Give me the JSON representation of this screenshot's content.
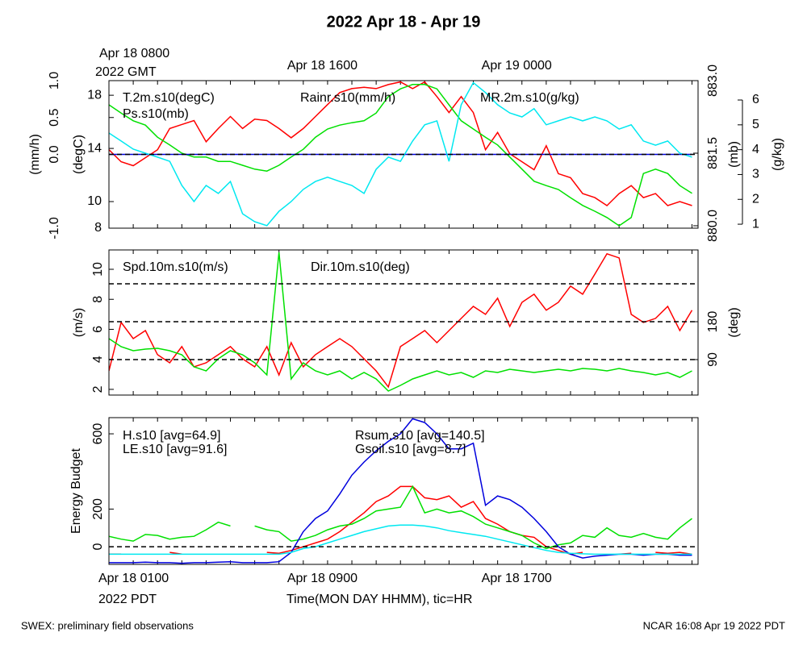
{
  "footer": {
    "left": "SWEX: preliminary field observations",
    "right": "NCAR 16:08 Apr 19 2022 PDT"
  },
  "chart_data": [
    {
      "type": "line",
      "title": "2022 Apr 18 - Apr 19",
      "top_note": "2022 GMT",
      "x": [
        0,
        0.5,
        1,
        1.5,
        2,
        2.5,
        3,
        3.5,
        4,
        4.5,
        5,
        5.5,
        6,
        6.5,
        7,
        7.5,
        8,
        8.5,
        9,
        9.5,
        10,
        10.5,
        11,
        11.5,
        12,
        12.5,
        13,
        13.5,
        14,
        14.5,
        15,
        15.5,
        16,
        16.5,
        17,
        17.5,
        18,
        18.5,
        19,
        19.5,
        20,
        20.5,
        21,
        21.5,
        22,
        22.5,
        23,
        23.5,
        24
      ],
      "xlim": [
        0,
        24.25
      ],
      "xticks": [
        0,
        1,
        2,
        3,
        4,
        5,
        6,
        7,
        8,
        9,
        10,
        11,
        12,
        13,
        14,
        15,
        16,
        17,
        18,
        19,
        20,
        21,
        22,
        23,
        24
      ],
      "xtick_labels_top": [
        {
          "value": 0,
          "label": "Apr 18 0800"
        },
        {
          "value": 8,
          "label": "Apr 18 1600"
        },
        {
          "value": 16,
          "label": "Apr 19 0000"
        }
      ],
      "axes": [
        {
          "label": "(mm/h)",
          "lim": [
            -1,
            1
          ],
          "ticks": [
            {
              "value": -1,
              "label": "-1.0"
            },
            {
              "value": 0,
              "label": "0.0"
            },
            {
              "value": 0.5,
              "label": "0.5"
            },
            {
              "value": 1,
              "label": "1.0"
            }
          ]
        },
        {
          "label": "(degC)",
          "lim": [
            8,
            19.1
          ],
          "ticks": [
            8,
            10,
            14,
            18
          ]
        },
        {
          "label": "(mb)",
          "lim": [
            879.95,
            883.0
          ],
          "ticks": [
            {
              "value": 880,
              "label": "880.0"
            },
            {
              "value": 881.5,
              "label": "881.5"
            },
            {
              "value": 883,
              "label": "883.0"
            }
          ]
        },
        {
          "label": "(g/kg)",
          "lim": [
            0.84,
            6.78
          ],
          "ticks": [
            1,
            2,
            3,
            4,
            5,
            6
          ]
        }
      ],
      "hlines": {
        "axis": 0,
        "values": [
          0
        ]
      },
      "series": [
        {
          "name": "T.2m.s10(degC)",
          "color": "#ff0000",
          "axis": 1,
          "values": [
            13.9,
            13.0,
            12.7,
            13.3,
            13.9,
            15.5,
            15.8,
            16.1,
            14.5,
            15.5,
            16.4,
            15.5,
            16.2,
            16.1,
            15.5,
            14.8,
            15.5,
            16.4,
            17.3,
            18.2,
            18.5,
            18.6,
            18.5,
            18.8,
            19.0,
            18.5,
            19.0,
            17.9,
            16.7,
            17.9,
            16.7,
            13.9,
            15.2,
            13.6,
            13.0,
            12.4,
            14.2,
            12.1,
            11.8,
            10.6,
            10.3,
            9.7,
            10.6,
            11.2,
            10.3,
            10.6,
            9.7,
            10.0,
            9.7
          ]
        },
        {
          "name": "Ps.s10(mb)",
          "color": "#00e000",
          "axis": 2,
          "values": [
            882.5,
            882.33,
            882.17,
            882.08,
            881.83,
            881.67,
            881.5,
            881.42,
            881.42,
            881.33,
            881.33,
            881.25,
            881.17,
            881.13,
            881.25,
            881.42,
            881.58,
            881.83,
            882.0,
            882.08,
            882.13,
            882.17,
            882.33,
            882.67,
            882.83,
            882.92,
            882.92,
            882.83,
            882.5,
            882.17,
            882.0,
            881.83,
            881.67,
            881.42,
            881.17,
            880.92,
            880.83,
            880.75,
            880.58,
            880.42,
            880.3,
            880.17,
            880.0,
            880.17,
            881.08,
            881.17,
            881.08,
            880.83,
            880.67
          ]
        },
        {
          "name": "Rainr.s10(mm/h)",
          "color": "#0000dd",
          "axis": 0,
          "values": [
            0,
            0,
            0,
            0,
            0,
            0,
            0,
            0,
            0,
            0,
            0,
            0,
            0,
            0,
            0,
            0,
            0,
            0,
            0,
            0,
            0,
            0,
            0,
            0,
            0,
            0,
            0,
            0,
            0,
            0,
            0,
            0,
            0,
            0,
            0,
            0,
            0,
            0,
            0,
            0,
            0,
            0,
            0,
            0,
            0,
            0,
            0,
            0,
            0
          ]
        },
        {
          "name": "MR.2m.s10(g/kg)",
          "color": "#00e8f0",
          "axis": 3,
          "values": [
            4.67,
            4.35,
            4.02,
            3.86,
            3.7,
            3.53,
            2.56,
            1.91,
            2.56,
            2.24,
            2.72,
            1.42,
            1.1,
            0.94,
            1.52,
            1.91,
            2.4,
            2.72,
            2.89,
            2.72,
            2.56,
            2.24,
            3.21,
            3.7,
            3.53,
            4.35,
            5.0,
            5.16,
            3.53,
            5.81,
            6.7,
            6.3,
            5.81,
            5.48,
            5.32,
            5.65,
            5.0,
            5.16,
            5.32,
            5.16,
            5.32,
            5.16,
            4.83,
            5.0,
            4.35,
            4.18,
            4.35,
            3.86,
            3.7
          ]
        }
      ]
    },
    {
      "type": "line",
      "x": [
        0,
        0.5,
        1,
        1.5,
        2,
        2.5,
        3,
        3.5,
        4,
        4.5,
        5,
        5.5,
        6,
        6.5,
        7,
        7.5,
        8,
        8.5,
        9,
        9.5,
        10,
        10.5,
        11,
        11.5,
        12,
        12.5,
        13,
        13.5,
        14,
        14.5,
        15,
        15.5,
        16,
        16.5,
        17,
        17.5,
        18,
        18.5,
        19,
        19.5,
        20,
        20.5,
        21,
        21.5,
        22,
        22.5,
        23,
        23.5,
        24
      ],
      "xlim": [
        0,
        24.25
      ],
      "xticks": [
        0,
        1,
        2,
        3,
        4,
        5,
        6,
        7,
        8,
        9,
        10,
        11,
        12,
        13,
        14,
        15,
        16,
        17,
        18,
        19,
        20,
        21,
        22,
        23,
        24
      ],
      "axes": [
        {
          "label": "(m/s)",
          "lim": [
            1.62,
            11.29
          ],
          "ticks": [
            2,
            4,
            6,
            8,
            10
          ]
        },
        {
          "label": "(deg)",
          "lim": [
            5.7,
            350.5
          ],
          "ticks": [
            90,
            180
          ]
        }
      ],
      "hlines": {
        "axis": 1,
        "values": [
          90,
          180,
          270
        ]
      },
      "series": [
        {
          "name": "Spd.10m.s10(m/s)",
          "color": "#ff0000",
          "axis": 0,
          "values": [
            3.23,
            6.46,
            5.38,
            5.92,
            4.31,
            3.77,
            4.85,
            3.5,
            3.77,
            4.31,
            4.85,
            4.04,
            3.5,
            4.85,
            2.96,
            5.11,
            3.5,
            4.31,
            4.85,
            5.38,
            4.85,
            4.04,
            3.23,
            2.16,
            4.85,
            5.38,
            5.92,
            5.11,
            5.92,
            6.73,
            7.53,
            7.0,
            8.07,
            6.19,
            7.8,
            8.34,
            7.27,
            7.8,
            8.88,
            8.34,
            9.68,
            11.03,
            10.76,
            7.0,
            6.46,
            6.73,
            7.53,
            5.92,
            7.27
          ]
        },
        {
          "name": "Dir.10m.s10(deg)",
          "color": "#00e000",
          "axis": 1,
          "values": [
            139.8,
            120.6,
            111.1,
            114.9,
            116.8,
            111.1,
            101.5,
            72.8,
            63.2,
            91.9,
            111.1,
            101.5,
            82.3,
            53.6,
            345,
            44.0,
            82.3,
            63.2,
            53.6,
            63.2,
            44.0,
            59.3,
            44.0,
            15.3,
            28.7,
            44.0,
            53.6,
            63.2,
            53.6,
            59.3,
            47.8,
            63.2,
            59.3,
            67.0,
            63.2,
            59.3,
            63.2,
            67.0,
            63.2,
            68.9,
            67.0,
            63.2,
            68.9,
            63.2,
            59.3,
            53.6,
            59.3,
            47.8,
            63.2
          ]
        }
      ]
    },
    {
      "type": "line",
      "xlabel": "Time(MON DAY HHMM), tic=HR",
      "bottom_note": "2022 PDT",
      "x": [
        0,
        0.5,
        1,
        1.5,
        2,
        2.5,
        3,
        3.5,
        4,
        4.5,
        5,
        5.5,
        6,
        6.5,
        7,
        7.5,
        8,
        8.5,
        9,
        9.5,
        10,
        10.5,
        11,
        11.5,
        12,
        12.5,
        13,
        13.5,
        14,
        14.5,
        15,
        15.5,
        16,
        16.5,
        17,
        17.5,
        18,
        18.5,
        19,
        19.5,
        20,
        20.5,
        21,
        21.5,
        22,
        22.5,
        23,
        23.5,
        24
      ],
      "xlim": [
        0,
        24.25
      ],
      "xticks": [
        0,
        1,
        2,
        3,
        4,
        5,
        6,
        7,
        8,
        9,
        10,
        11,
        12,
        13,
        14,
        15,
        16,
        17,
        18,
        19,
        20,
        21,
        22,
        23,
        24
      ],
      "xtick_labels": [
        {
          "value": 0,
          "label": "Apr 18 0100"
        },
        {
          "value": 8,
          "label": "Apr 18 0900"
        },
        {
          "value": 16,
          "label": "Apr 18 1700"
        }
      ],
      "axes": [
        {
          "label": "Energy Budget",
          "lim": [
            -94,
            686
          ],
          "ticks": [
            0,
            200,
            600
          ]
        }
      ],
      "hlines": {
        "axis": 0,
        "values": [
          0
        ]
      },
      "series": [
        {
          "name": "H.s10 [avg=64.9]",
          "color": "#ff0000",
          "axis": 0,
          "values": [
            -39,
            -39,
            null,
            null,
            null,
            -30,
            -39,
            null,
            null,
            null,
            null,
            null,
            null,
            -30,
            -35,
            -20,
            0,
            20,
            40,
            80,
            130,
            180,
            240,
            270,
            320,
            320,
            260,
            250,
            270,
            210,
            240,
            150,
            120,
            80,
            60,
            50,
            0,
            -20,
            -40,
            -30,
            null,
            null,
            -40,
            -35,
            null,
            -30,
            -35,
            -30,
            -40
          ]
        },
        {
          "name": "LE.s10 [avg=91.6]",
          "color": "#00e000",
          "axis": 0,
          "values": [
            55,
            40,
            30,
            65,
            60,
            40,
            50,
            55,
            90,
            130,
            110,
            null,
            110,
            90,
            80,
            30,
            40,
            60,
            90,
            110,
            120,
            150,
            190,
            200,
            210,
            320,
            180,
            200,
            180,
            190,
            160,
            120,
            100,
            80,
            60,
            20,
            -10,
            10,
            20,
            60,
            50,
            100,
            60,
            50,
            70,
            50,
            40,
            100,
            150
          ]
        },
        {
          "name": "Rsum.s10 [avg=140.5]",
          "color": "#0000dd",
          "axis": 0,
          "values": [
            -85,
            -85,
            -85,
            -82,
            -85,
            -85,
            -88,
            -85,
            -85,
            -82,
            -80,
            -85,
            -85,
            -85,
            -80,
            -30,
            80,
            150,
            190,
            280,
            380,
            450,
            510,
            560,
            600,
            680,
            660,
            600,
            520,
            520,
            550,
            220,
            270,
            250,
            210,
            150,
            80,
            0,
            -40,
            -60,
            -50,
            -45,
            -40,
            -40,
            -45,
            -40,
            -40,
            -45,
            -45
          ]
        },
        {
          "name": "Gsoil.s10 [avg=8.7]",
          "color": "#00e8f0",
          "axis": 0,
          "values": [
            -40,
            -40,
            -40,
            -40,
            -40,
            -40,
            -40,
            -40,
            -40,
            -40,
            -40,
            -40,
            -40,
            -40,
            -40,
            -30,
            -10,
            0,
            20,
            40,
            60,
            80,
            95,
            110,
            115,
            115,
            110,
            100,
            85,
            75,
            65,
            55,
            40,
            25,
            10,
            -5,
            -20,
            -30,
            -35,
            -38,
            -40,
            -40,
            -40,
            -40,
            -40,
            -40,
            -40,
            -40,
            -40
          ]
        }
      ]
    }
  ]
}
